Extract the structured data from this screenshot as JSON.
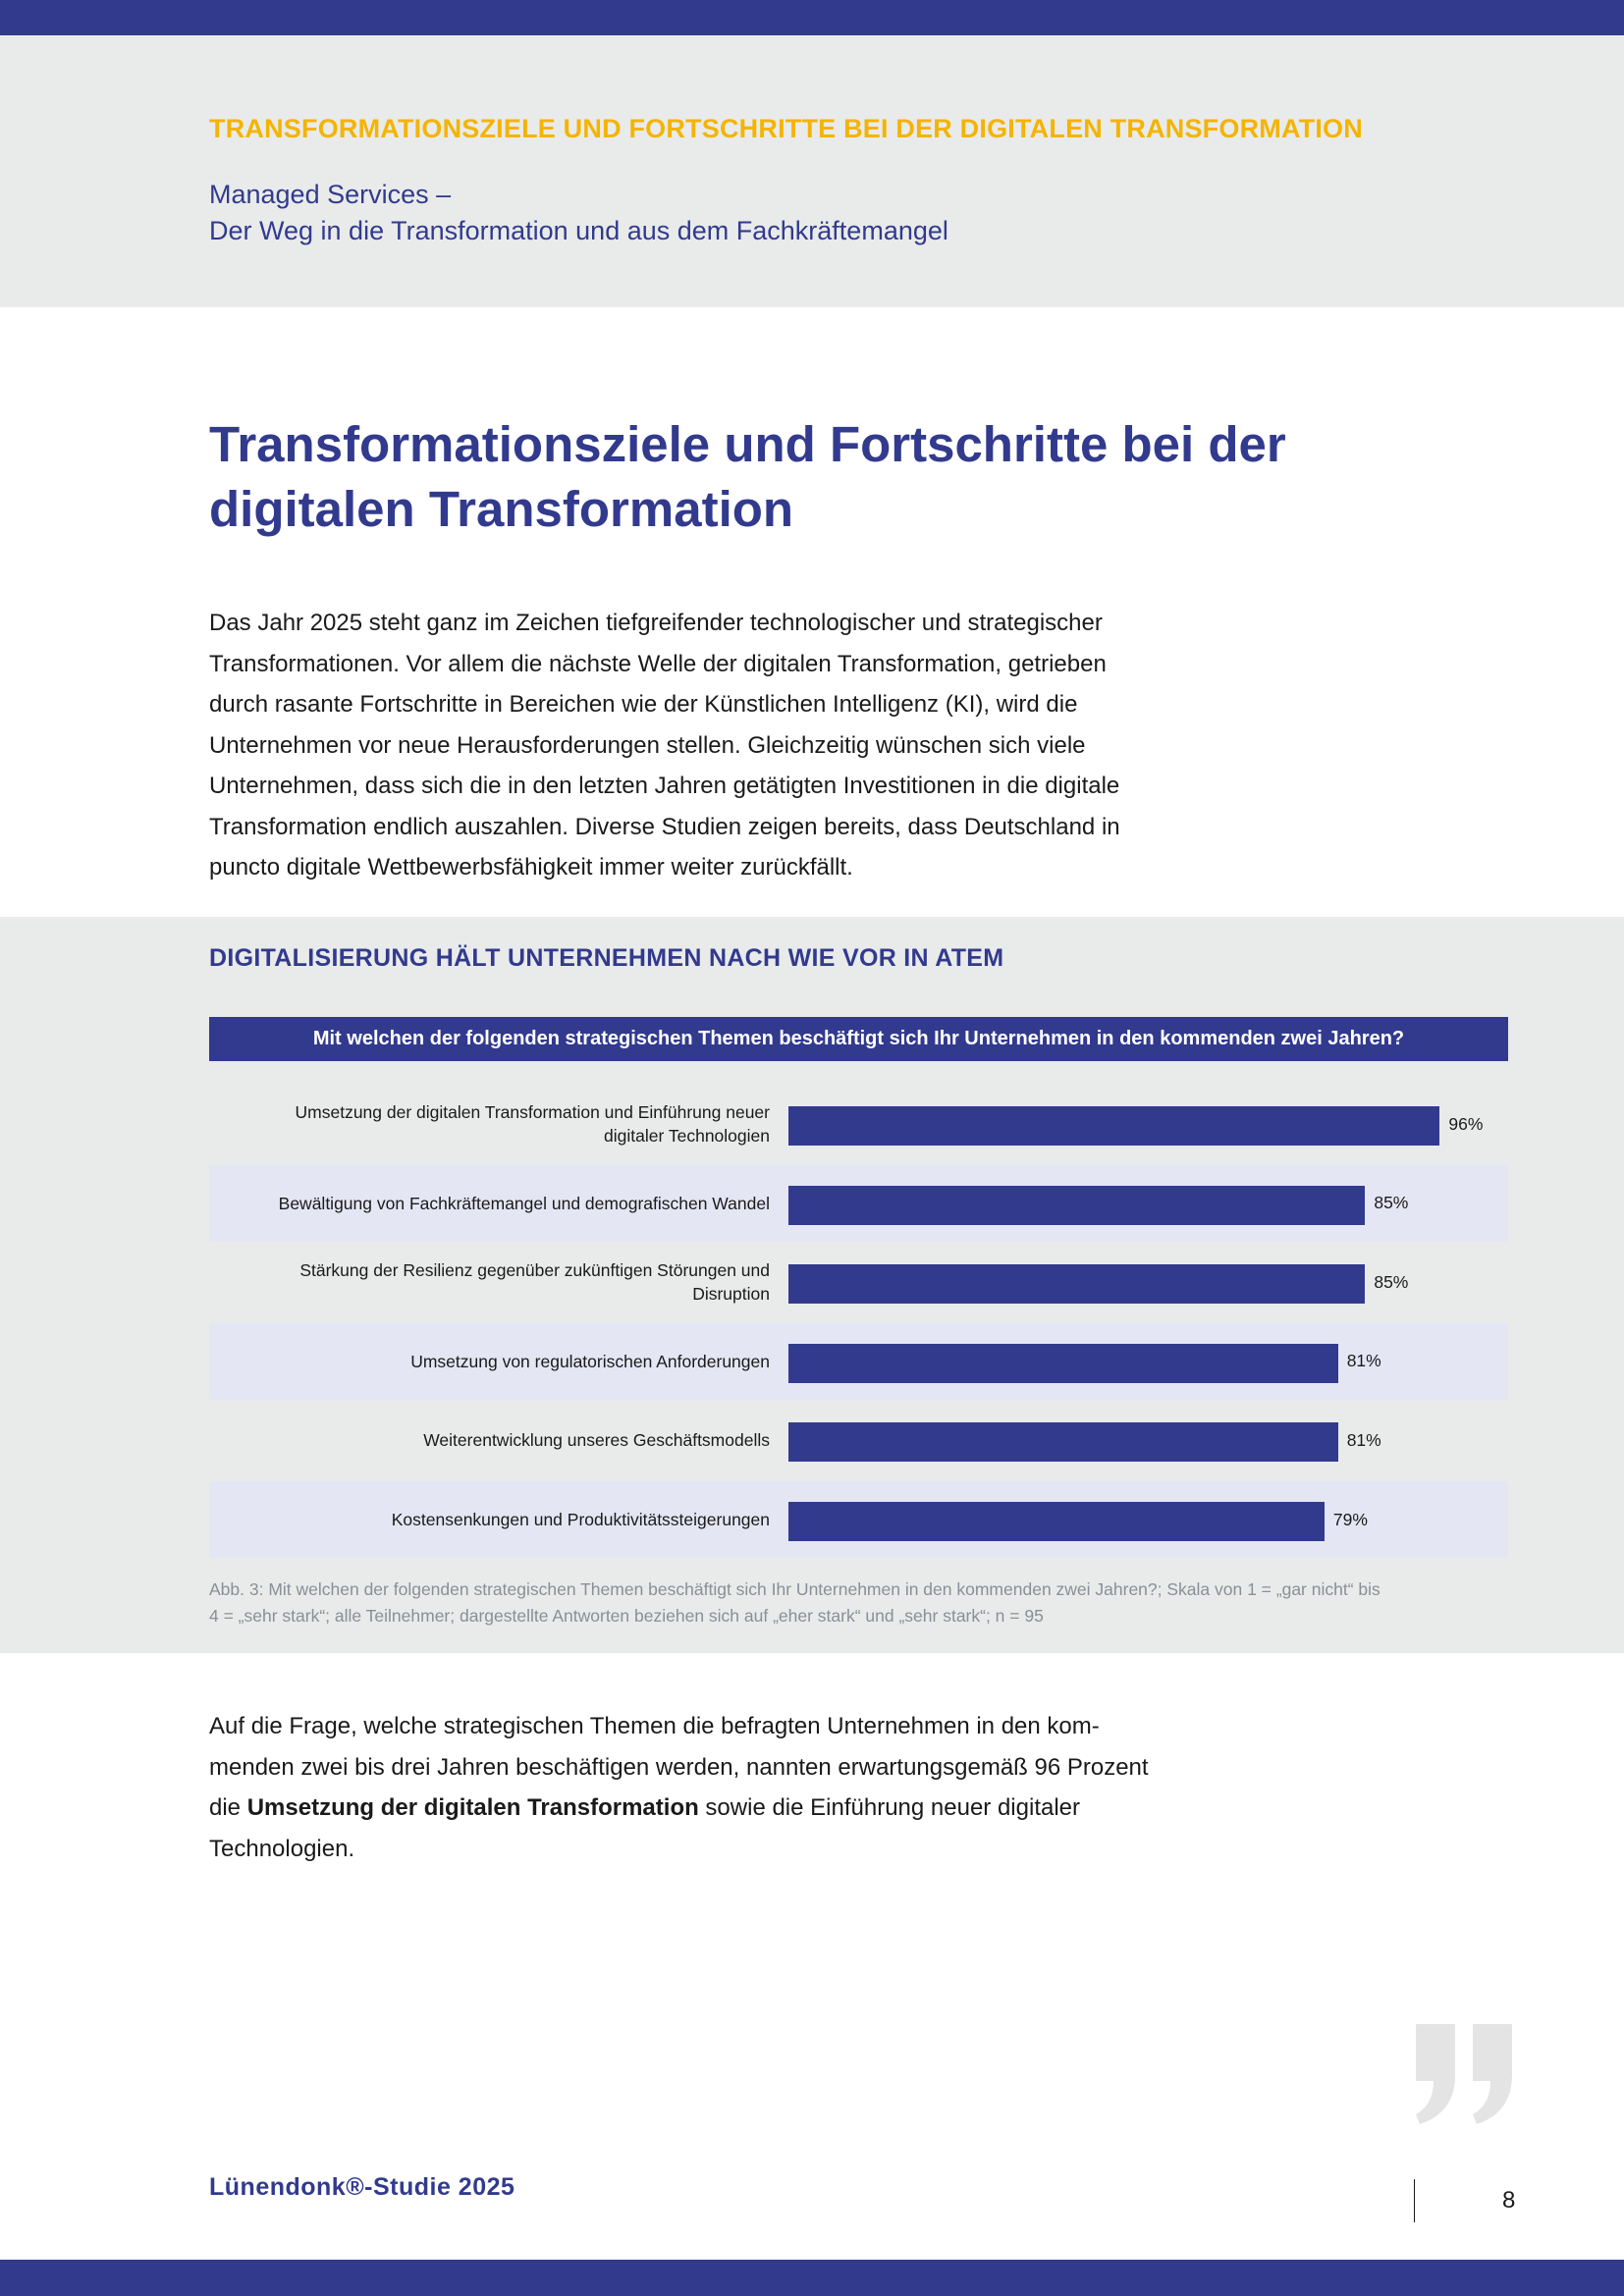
{
  "header": {
    "kicker": "TRANSFORMATIONSZIELE UND FORTSCHRITTE BEI DER DIGITALEN TRANSFORMATION",
    "subtitle_line1": "Managed Services –",
    "subtitle_line2": "Der Weg in die Transformation und aus dem Fachkräftemangel"
  },
  "article": {
    "title_line1": "Transformationsziele und Fortschritte bei der",
    "title_line2": "digitalen Transformation",
    "intro": [
      "Das Jahr 2025 steht ganz im Zeichen tiefgreifender technologischer und strategischer",
      "Transformationen. Vor allem die nächste Welle der digitalen Transformation, getrieben",
      "durch rasante Fortschritte in Bereichen wie der Künstlichen Intelligenz (KI), wird die",
      "Unternehmen vor neue Herausforderungen stellen. Gleichzeitig wünschen sich viele",
      "Unternehmen, dass sich die in den letzten Jahren getätigten Investitionen in die digitale",
      "Transformation endlich auszahlen. Diverse Studien zeigen bereits, dass Deutschland in",
      "puncto digitale Wettbewerbsfähigkeit immer weiter zurückfällt."
    ],
    "body2": {
      "line1": "Auf die Frage, welche strategischen Themen die befragten Unternehmen in den kom-",
      "line2": "menden zwei bis drei Jahren beschäftigen werden, nannten erwartungsgemäß 96 Prozent",
      "line3_prefix": "die ",
      "line3_bold": "Umsetzung der digitalen Transformation",
      "line3_suffix": " sowie die Einführung neuer digitaler",
      "line4": "Technologien."
    }
  },
  "chart_section": {
    "heading": "DIGITALISIERUNG HÄLT UNTERNEHMEN NACH WIE VOR IN ATEM",
    "caption_line1": "Abb. 3: Mit welchen der folgenden strategischen Themen beschäftigt sich Ihr Unternehmen in den kommenden zwei Jahren?; Skala von 1 = „gar nicht“ bis",
    "caption_line2": "4 = „sehr stark“; alle Teilnehmer; dargestellte Antworten beziehen sich auf „eher stark“ und „sehr stark“; n = 95"
  },
  "chart_data": {
    "type": "bar",
    "orientation": "horizontal",
    "title": "Mit welchen der folgenden strategischen Themen beschäftigt sich Ihr Unternehmen in den kommenden zwei Jahren?",
    "categories": [
      [
        "Umsetzung der digitalen Transformation und Einführung neuer",
        "digitaler Technologien"
      ],
      [
        "Bewältigung von Fachkräftemangel und demografischen Wandel"
      ],
      [
        "Stärkung der Resilienz gegenüber zukünftigen Störungen und",
        "Disruption"
      ],
      [
        "Umsetzung von regulatorischen Anforderungen"
      ],
      [
        "Weiterentwicklung unseres Geschäftsmodells"
      ],
      [
        "Kostensenkungen und Produktivitätssteigerungen"
      ]
    ],
    "values": [
      96,
      85,
      85,
      81,
      81,
      79
    ],
    "value_labels": [
      "96%",
      "85%",
      "85%",
      "81%",
      "81%",
      "79%"
    ],
    "unit": "%",
    "xlim": [
      0,
      100
    ],
    "bar_color": "#323a8e"
  },
  "footer": {
    "brand": "Lünendonk®-Studie 2025",
    "page_number": "8"
  },
  "colors": {
    "brand_blue": "#323a8e",
    "accent_yellow": "#f4b400",
    "band_gray": "#e9ebea",
    "row_highlight": "#e4e6f4"
  },
  "icons": {
    "quote": "closing-quote-icon"
  }
}
